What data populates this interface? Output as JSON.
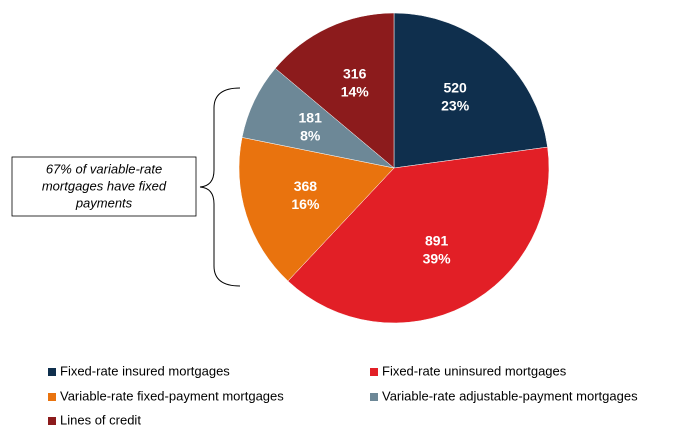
{
  "chart_data": {
    "type": "pie",
    "categories": [
      "Fixed-rate insured mortgages",
      "Fixed-rate uninsured mortgages",
      "Variable-rate fixed-payment mortgages",
      "Variable-rate adjustable-payment mortgages",
      "Lines of credit"
    ],
    "values": [
      520,
      891,
      368,
      181,
      316
    ],
    "share_labels": [
      "23%",
      "39%",
      "16%",
      "8%",
      "14%"
    ],
    "colors": [
      "#0f2f4d",
      "#e21f26",
      "#e9730e",
      "#6d8897",
      "#8c1b1c"
    ],
    "annotation": [
      "67% of variable-rate",
      "mortgages have fixed",
      "payments"
    ],
    "legend": "bottom"
  }
}
